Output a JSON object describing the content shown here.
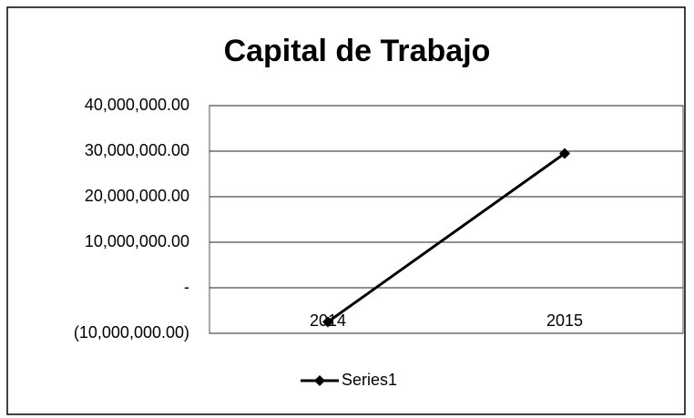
{
  "chart_data": {
    "type": "line",
    "title": "Capital de Trabajo",
    "categories": [
      "2014",
      "2015"
    ],
    "series": [
      {
        "name": "Series1",
        "color": "#000000",
        "values": [
          -7500000,
          29500000
        ]
      }
    ],
    "ylim": [
      -10000000,
      40000000
    ],
    "yticks": [
      {
        "value": -10000000,
        "label": "(10,000,000.00)"
      },
      {
        "value": 0,
        "label": "-"
      },
      {
        "value": 10000000,
        "label": "10,000,000.00"
      },
      {
        "value": 20000000,
        "label": "20,000,000.00"
      },
      {
        "value": 30000000,
        "label": "30,000,000.00"
      },
      {
        "value": 40000000,
        "label": "40,000,000.00"
      }
    ],
    "grid": true,
    "legend": "bottom"
  }
}
